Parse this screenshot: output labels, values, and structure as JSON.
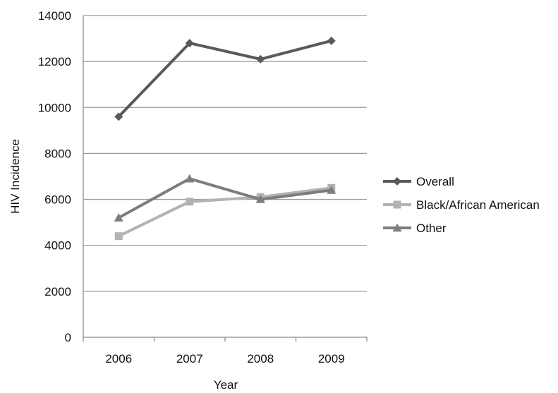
{
  "chart_data": {
    "type": "line",
    "x": [
      "2006",
      "2007",
      "2008",
      "2009"
    ],
    "xlabel": "Year",
    "ylabel": "HIV Incidence",
    "ylim": [
      0,
      14000
    ],
    "yticks": [
      "0",
      "2000",
      "4000",
      "6000",
      "8000",
      "10000",
      "12000",
      "14000"
    ],
    "grid": true,
    "legend_position": "right",
    "series": [
      {
        "name": "Overall",
        "values": [
          9600,
          12800,
          12100,
          12900
        ],
        "color": "#5a5a5a",
        "marker": "diamond"
      },
      {
        "name": "Black/African American",
        "values": [
          4400,
          5900,
          6100,
          6500
        ],
        "color": "#b3b3b3",
        "marker": "square"
      },
      {
        "name": "Other",
        "values": [
          5200,
          6900,
          6000,
          6400
        ],
        "color": "#7d7d7d",
        "marker": "triangle"
      }
    ]
  }
}
